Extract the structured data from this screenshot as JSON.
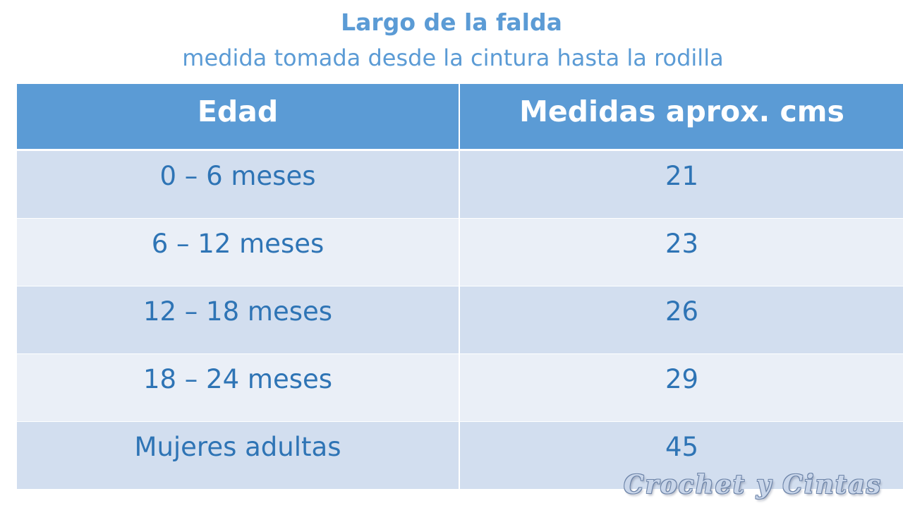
{
  "slide": {
    "title": "Largo de la falda",
    "subtitle": "medida tomada desde la cintura hasta la rodilla",
    "colors": {
      "accent": "#5b9bd5",
      "cell_text": "#2e74b5",
      "row_dark": "#d2deef",
      "row_light": "#eaeff7"
    }
  },
  "table": {
    "headers": [
      "Edad",
      "Medidas aprox. cms"
    ],
    "rows": [
      [
        "0 – 6 meses",
        "21"
      ],
      [
        "6 – 12 meses",
        "23"
      ],
      [
        "12 – 18 meses",
        "26"
      ],
      [
        "18 – 24 meses",
        "29"
      ],
      [
        "Mujeres adultas",
        "45"
      ]
    ]
  },
  "watermark": {
    "text": "Crochet y Cintas"
  }
}
